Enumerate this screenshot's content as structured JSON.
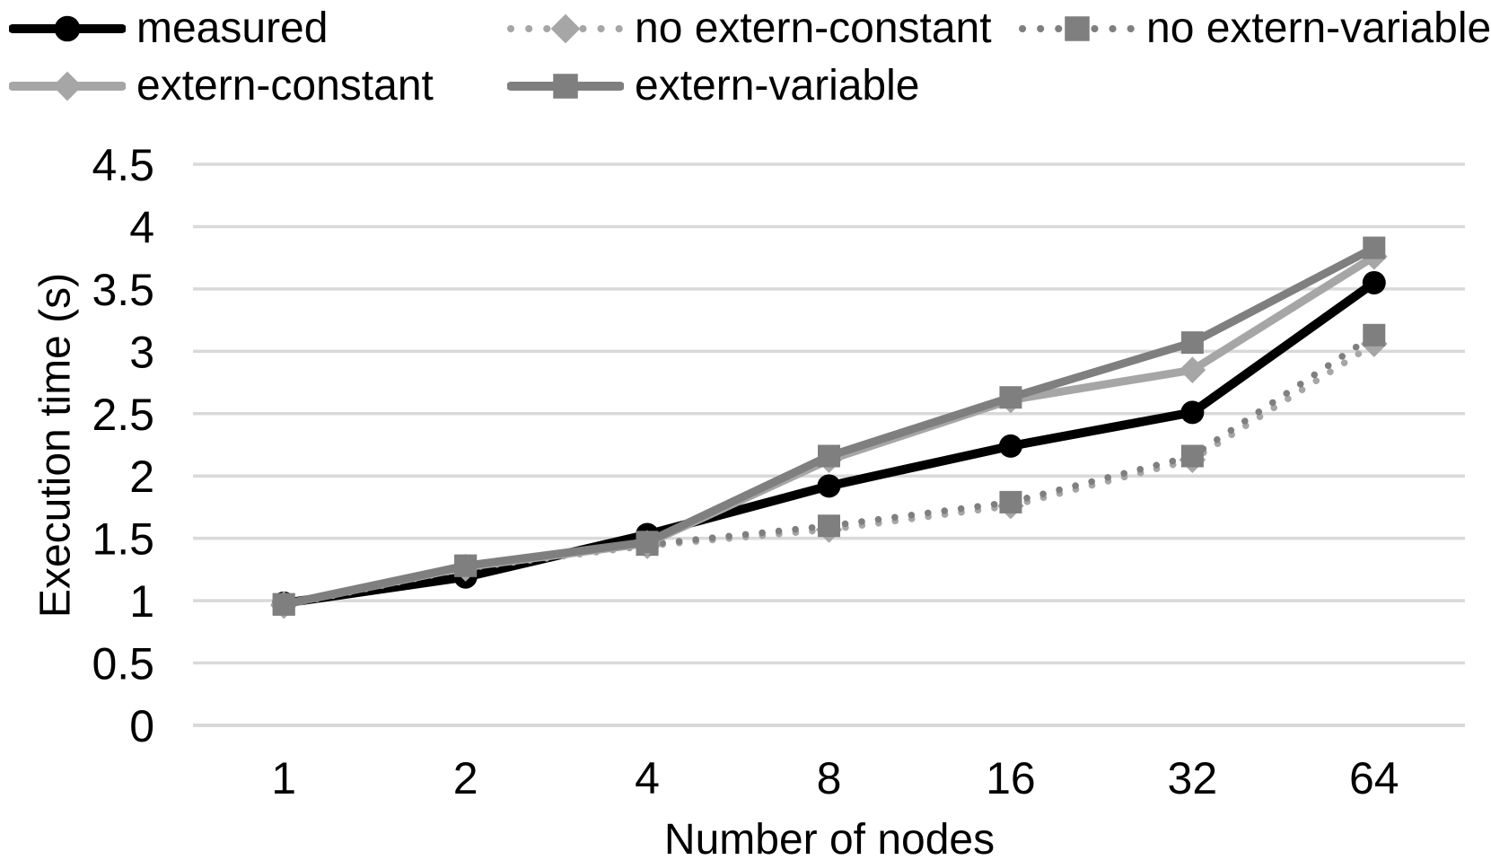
{
  "chart_data": {
    "type": "line",
    "title": "",
    "xlabel": "Number of nodes",
    "ylabel": "Execution time (s)",
    "categories": [
      "1",
      "2",
      "4",
      "8",
      "16",
      "32",
      "64"
    ],
    "ylim": [
      0,
      4.5
    ],
    "yticks": [
      0,
      0.5,
      1,
      1.5,
      2,
      2.5,
      3,
      3.5,
      4,
      4.5
    ],
    "ytick_labels": [
      "0",
      "0.5",
      "1",
      "1.5",
      "2",
      "2.5",
      "3",
      "3.5",
      "4",
      "4.5"
    ],
    "grid": "horizontal",
    "legend_position": "top",
    "series": [
      {
        "name": "measured",
        "color": "#000000",
        "line": "solid",
        "marker": "circle",
        "values": [
          0.98,
          1.19,
          1.53,
          1.92,
          2.24,
          2.51,
          3.55
        ]
      },
      {
        "name": "no extern-constant",
        "color": "#A6A6A6",
        "line": "dotted",
        "marker": "diamond",
        "values": [
          0.96,
          1.26,
          1.44,
          1.57,
          1.76,
          2.13,
          3.06
        ]
      },
      {
        "name": "no extern-variable",
        "color": "#7F7F7F",
        "line": "dotted",
        "marker": "square",
        "values": [
          0.97,
          1.28,
          1.45,
          1.6,
          1.79,
          2.16,
          3.13
        ]
      },
      {
        "name": "extern-constant",
        "color": "#A6A6A6",
        "line": "solid",
        "marker": "diamond",
        "values": [
          0.97,
          1.27,
          1.46,
          2.13,
          2.61,
          2.85,
          3.76
        ]
      },
      {
        "name": "extern-variable",
        "color": "#7F7F7F",
        "line": "solid",
        "marker": "square",
        "values": [
          0.97,
          1.28,
          1.47,
          2.16,
          2.63,
          3.07,
          3.83
        ]
      }
    ],
    "colors": {
      "grid": "#D9D9D9",
      "axis": "#D9D9D9",
      "text": "#000000",
      "background": "#FFFFFF"
    }
  }
}
